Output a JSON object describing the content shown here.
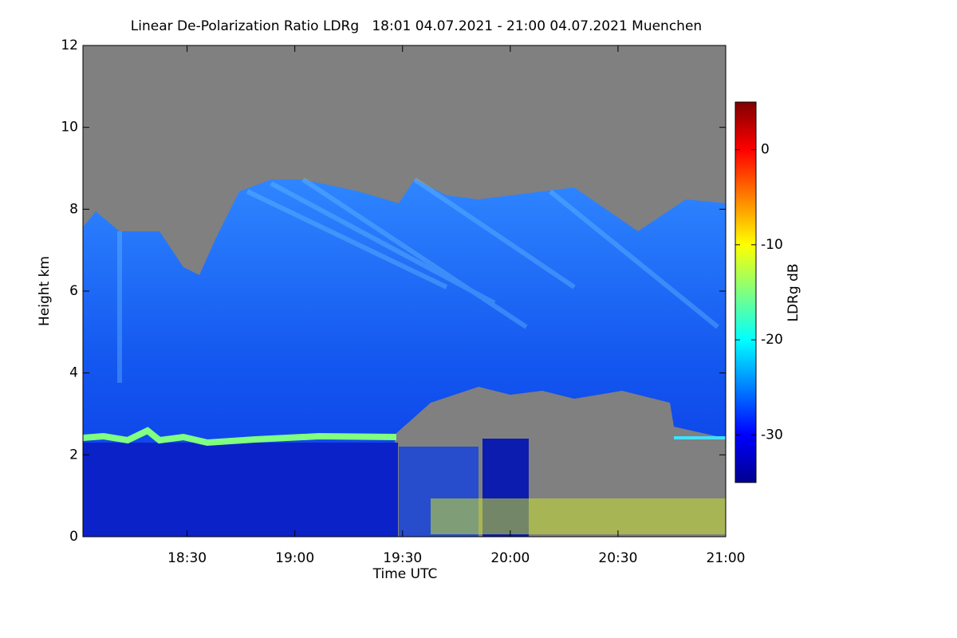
{
  "chart_data": {
    "type": "heatmap",
    "title": "Linear De-Polarization Ratio LDRg   18:01 04.07.2021 - 21:00 04.07.2021 Muenchen",
    "x_label": "Time UTC",
    "y_label": "Height km",
    "colorbar_label": "LDRg dB",
    "xlim": [
      1081,
      1260
    ],
    "xticks": [
      {
        "value": 1110,
        "label": "18:30"
      },
      {
        "value": 1140,
        "label": "19:00"
      },
      {
        "value": 1170,
        "label": "19:30"
      },
      {
        "value": 1200,
        "label": "20:00"
      },
      {
        "value": 1230,
        "label": "20:30"
      },
      {
        "value": 1260,
        "label": "21:00"
      }
    ],
    "ylim": [
      0,
      12
    ],
    "yticks": [
      0,
      2,
      4,
      6,
      8,
      10,
      12
    ],
    "clim": [
      -35,
      5
    ],
    "cticks": [
      -30,
      -20,
      -10,
      0
    ],
    "colormap": "jet"
  }
}
